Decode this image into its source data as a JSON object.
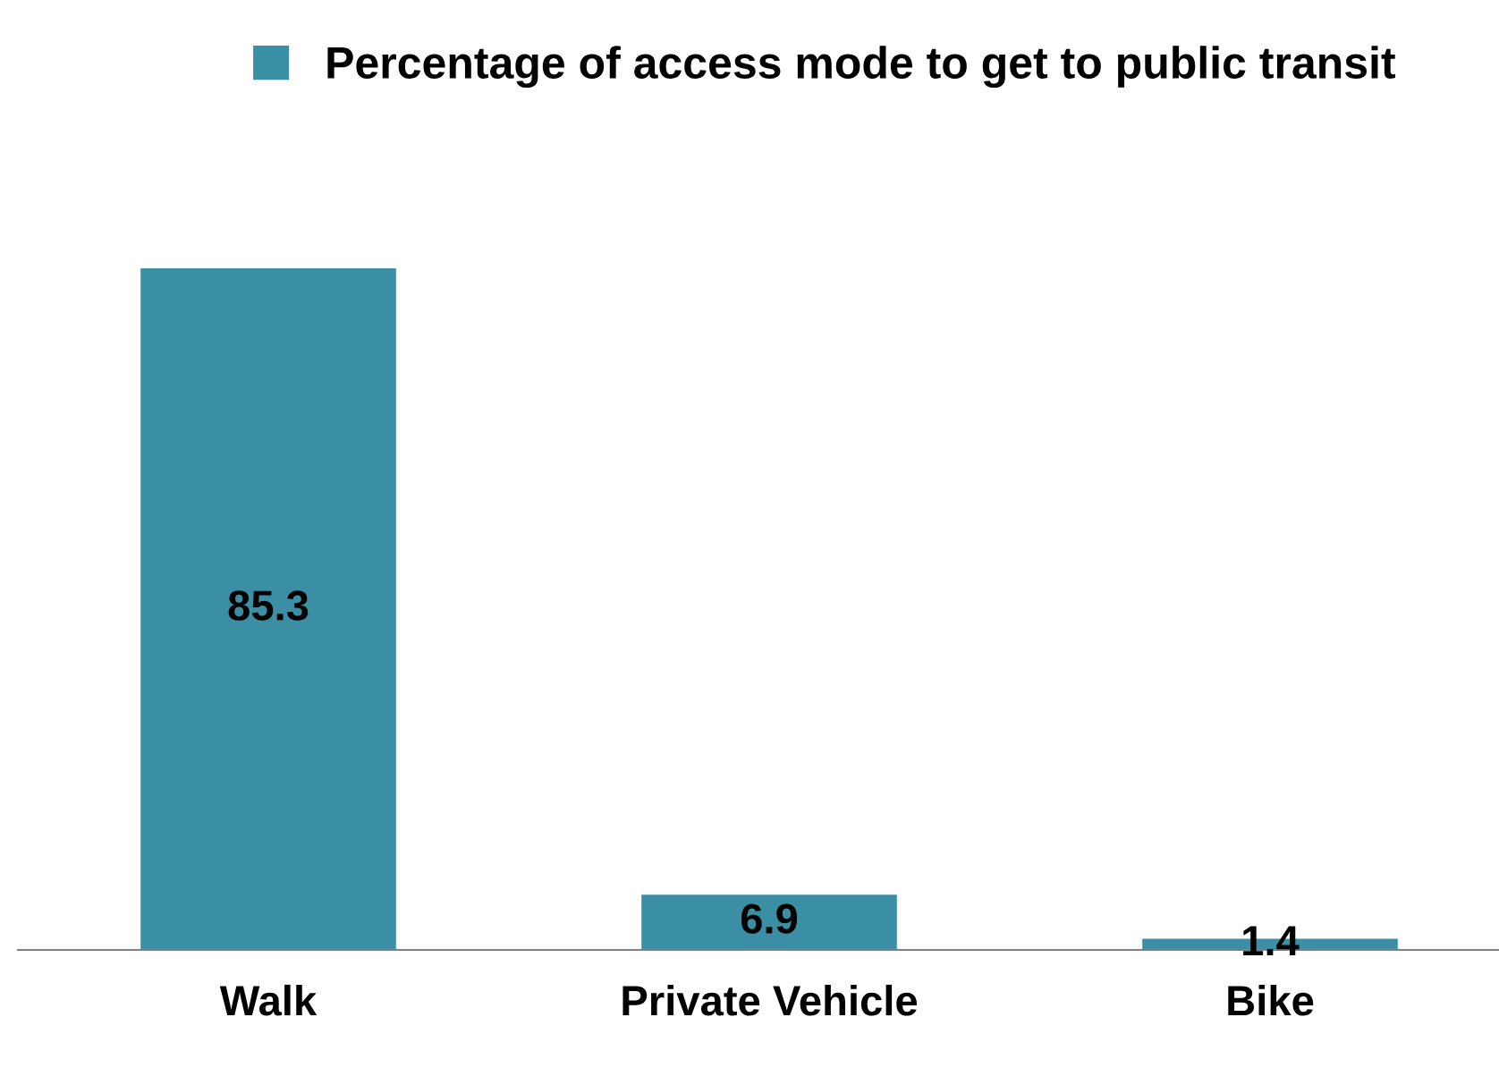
{
  "chart_data": {
    "type": "bar",
    "categories": [
      "Walk",
      "Private Vehicle",
      "Bike"
    ],
    "series": [
      {
        "name": "Percentage of access mode to get to public transit",
        "color": "#3a8fa5",
        "values": [
          85.3,
          6.9,
          1.4
        ]
      }
    ],
    "data_labels": true,
    "legend": "top",
    "grid": false,
    "tick_labels": "x"
  }
}
